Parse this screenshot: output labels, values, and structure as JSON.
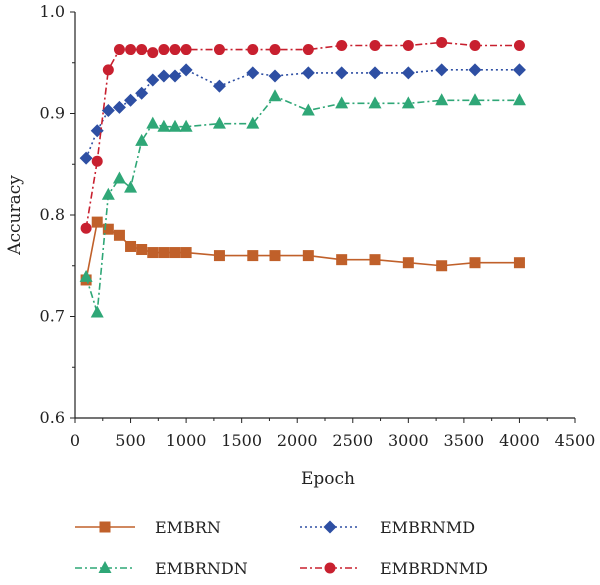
{
  "chart_data": {
    "type": "line",
    "title": "",
    "xlabel": "Epoch",
    "ylabel": "Accuracy",
    "xlim": [
      0,
      4500
    ],
    "ylim": [
      0.6,
      1.0
    ],
    "xticks": [
      "0",
      "500",
      "1000",
      "1500",
      "2000",
      "2500",
      "3000",
      "3500",
      "4000",
      "4500"
    ],
    "yticks": [
      "0.6",
      "0.7",
      "0.8",
      "0.9",
      "1.0"
    ],
    "grid": false,
    "legend_position": "bottom",
    "series": [
      {
        "name": "EMBRN",
        "color": "#c0602a",
        "marker": "square",
        "dash": "solid",
        "x": [
          100,
          200,
          300,
          400,
          500,
          600,
          700,
          800,
          900,
          1000,
          1300,
          1600,
          1800,
          2100,
          2400,
          2700,
          3000,
          3300,
          3600,
          4000
        ],
        "y": [
          0.736,
          0.793,
          0.786,
          0.78,
          0.769,
          0.766,
          0.763,
          0.763,
          0.763,
          0.763,
          0.76,
          0.76,
          0.76,
          0.76,
          0.756,
          0.756,
          0.753,
          0.75,
          0.753,
          0.753
        ]
      },
      {
        "name": "EMBRNMD",
        "color": "#2e4fa3",
        "marker": "diamond",
        "dash": "dotted",
        "x": [
          100,
          200,
          300,
          400,
          500,
          600,
          700,
          800,
          900,
          1000,
          1300,
          1600,
          1800,
          2100,
          2400,
          2700,
          3000,
          3300,
          3600,
          4000
        ],
        "y": [
          0.856,
          0.883,
          0.903,
          0.906,
          0.913,
          0.92,
          0.933,
          0.937,
          0.937,
          0.943,
          0.927,
          0.94,
          0.937,
          0.94,
          0.94,
          0.94,
          0.94,
          0.943,
          0.943,
          0.943
        ]
      },
      {
        "name": "EMBRNDN",
        "color": "#2fa777",
        "marker": "triangle",
        "dash": "dashdot",
        "x": [
          100,
          200,
          300,
          400,
          500,
          600,
          700,
          800,
          900,
          1000,
          1300,
          1600,
          1800,
          2100,
          2400,
          2700,
          3000,
          3300,
          3600,
          4000
        ],
        "y": [
          0.739,
          0.704,
          0.82,
          0.836,
          0.827,
          0.873,
          0.89,
          0.887,
          0.887,
          0.887,
          0.89,
          0.89,
          0.917,
          0.903,
          0.91,
          0.91,
          0.91,
          0.913,
          0.913,
          0.913
        ]
      },
      {
        "name": "EMBRDNMD",
        "color": "#c8202f",
        "marker": "circle",
        "dash": "dashdot",
        "x": [
          100,
          200,
          300,
          400,
          500,
          600,
          700,
          800,
          900,
          1000,
          1300,
          1600,
          1800,
          2100,
          2400,
          2700,
          3000,
          3300,
          3600,
          4000
        ],
        "y": [
          0.787,
          0.853,
          0.943,
          0.963,
          0.963,
          0.963,
          0.96,
          0.963,
          0.963,
          0.963,
          0.963,
          0.963,
          0.963,
          0.963,
          0.967,
          0.967,
          0.967,
          0.97,
          0.967,
          0.967
        ]
      }
    ]
  }
}
